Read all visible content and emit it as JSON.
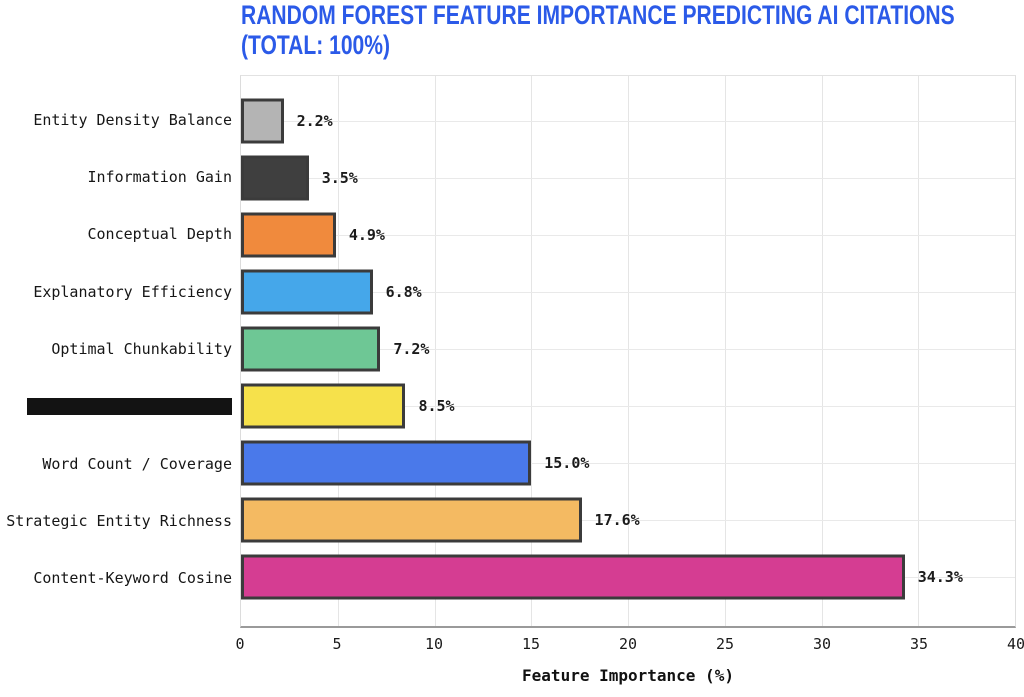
{
  "title": {
    "line1": "RANDOM FOREST FEATURE IMPORTANCE PREDICTING AI CITATIONS",
    "line2": "(TOTAL: 100%)"
  },
  "colors": {
    "title_blue": "#2b5ae8",
    "bar_border": "#3b3b3b",
    "grid": "#e5e5e5",
    "bottom_axis": "#9a9a9a",
    "label_text": "#161616",
    "redaction_black": "#131313"
  },
  "chart_data": {
    "type": "bar",
    "orientation": "horizontal",
    "title": "RANDOM FOREST FEATURE IMPORTANCE PREDICTING AI CITATIONS (TOTAL: 100%)",
    "xlabel": "Feature Importance (%)",
    "xlim": [
      0,
      40
    ],
    "xticks": [
      0,
      5,
      10,
      15,
      20,
      25,
      30,
      35,
      40
    ],
    "grid": true,
    "legend": false,
    "categories": [
      "Entity Density Balance",
      "Information Gain",
      "Conceptual Depth",
      "Explanatory Efficiency",
      "Optimal Chunkability",
      "",
      "Word Count / Coverage",
      "Strategic Entity Richness",
      "Content-Keyword Cosine"
    ],
    "redacted_row_index": 5,
    "values": [
      2.2,
      3.5,
      4.9,
      6.8,
      7.2,
      8.5,
      15.0,
      17.6,
      34.3
    ],
    "value_labels": [
      "2.2%",
      "3.5%",
      "4.9%",
      "6.8%",
      "7.2%",
      "8.5%",
      "15.0%",
      "17.6%",
      "34.3%"
    ],
    "bar_colors": [
      "#b4b4b4",
      "#3f3f3f",
      "#f08a3d",
      "#45a7ea",
      "#6ec795",
      "#f6e14b",
      "#4a79ea",
      "#f4ba62",
      "#d53d92"
    ]
  }
}
